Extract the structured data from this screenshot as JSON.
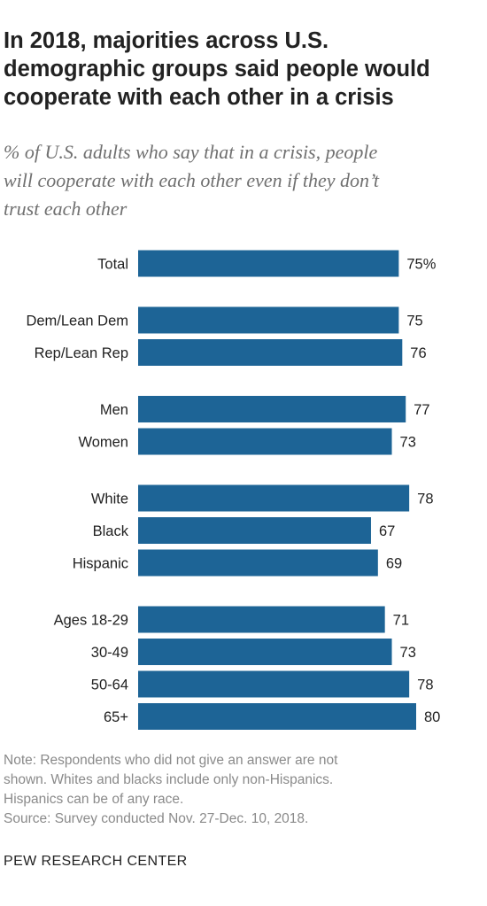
{
  "header": {
    "title_lines": [
      "In 2018, majorities across U.S.",
      "demographic groups said people would",
      "cooperate with each other in a crisis"
    ],
    "subtitle_lines": [
      "% of U.S. adults who say that in a crisis, people",
      "will cooperate with each other even if they don’t",
      "trust each other"
    ]
  },
  "chart_data": {
    "type": "bar",
    "orientation": "horizontal",
    "categories": [
      "Total",
      "Dem/Lean Dem",
      "Rep/Lean Rep",
      "Men",
      "Women",
      "White",
      "Black",
      "Hispanic",
      "Ages 18-29",
      "30-49",
      "50-64",
      "65+"
    ],
    "groups": [
      [
        0
      ],
      [
        1,
        2
      ],
      [
        3,
        4
      ],
      [
        5,
        6,
        7
      ],
      [
        8,
        9,
        10,
        11
      ]
    ],
    "values": [
      75,
      75,
      76,
      77,
      73,
      78,
      67,
      69,
      71,
      73,
      78,
      80
    ],
    "value_labels": [
      "75%",
      "75",
      "76",
      "77",
      "73",
      "78",
      "67",
      "69",
      "71",
      "73",
      "78",
      "80"
    ],
    "bar_color": "#1d6496",
    "xlim": [
      0,
      80
    ],
    "grid": false,
    "legend": "none"
  },
  "footer": {
    "note_lines": [
      "Note: Respondents who did not give an answer are not",
      "shown. Whites and blacks include only non-Hispanics.",
      "Hispanics can be of any race."
    ],
    "source": "Source: Survey conducted Nov. 27-Dec. 10, 2018.",
    "brand": "PEW RESEARCH CENTER"
  }
}
